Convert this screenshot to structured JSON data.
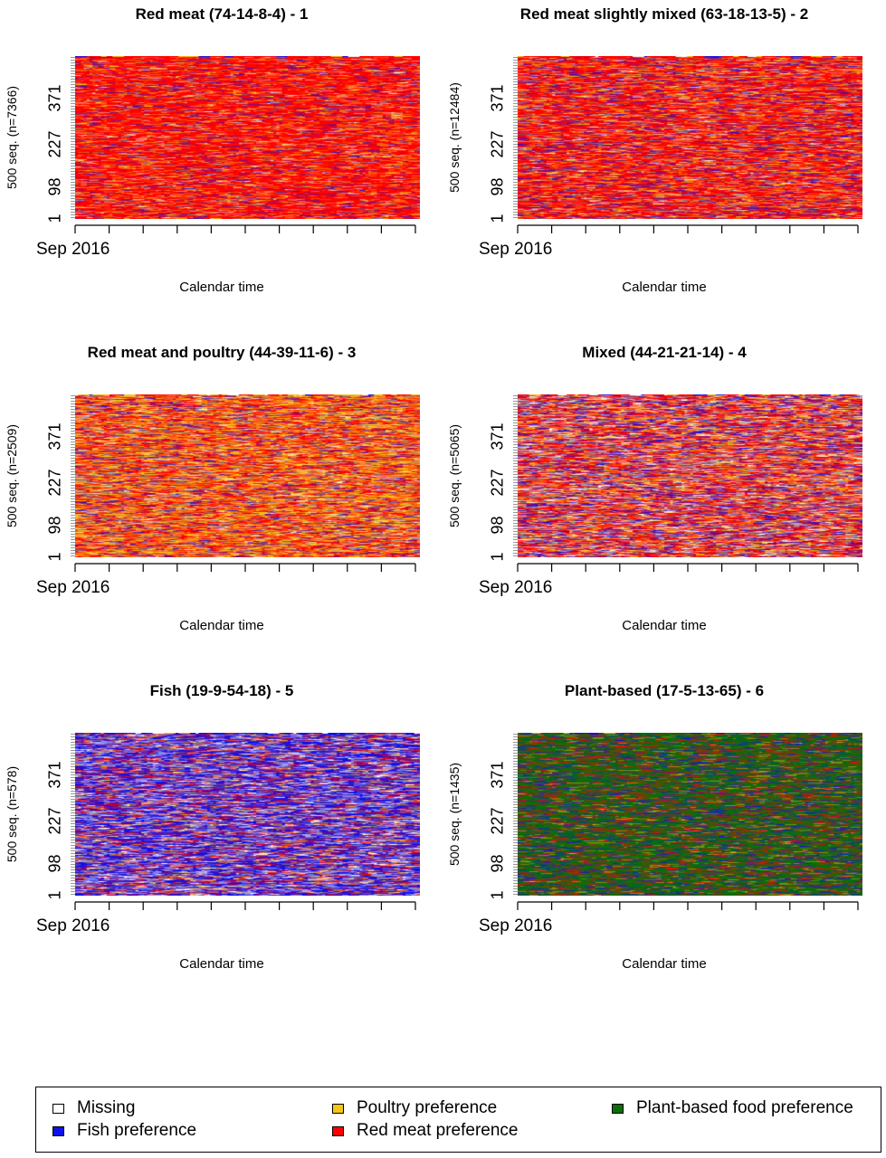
{
  "chart_data": [
    {
      "type": "heatmap",
      "title": "Red meat (74-14-8-4) - 1",
      "ylabel": "500 seq. (n=7366)",
      "xlabel": "Calendar time",
      "x_first_label": "Sep 2016",
      "y_ticks": [
        "1",
        "98",
        "227",
        "371"
      ],
      "composition": {
        "Missing": 4,
        "Poultry preference": 14,
        "Fish preference": 8,
        "Red meat preference": 74
      }
    },
    {
      "type": "heatmap",
      "title": "Red meat slightly mixed (63-18-13-5) - 2",
      "ylabel": "500 seq. (n=12484)",
      "xlabel": "Calendar time",
      "x_first_label": "Sep 2016",
      "y_ticks": [
        "1",
        "98",
        "227",
        "371"
      ],
      "composition": {
        "Missing": 5,
        "Poultry preference": 18,
        "Fish preference": 13,
        "Red meat preference": 63
      }
    },
    {
      "type": "heatmap",
      "title": "Red meat and poultry (44-39-11-6) - 3",
      "ylabel": "500 seq. (n=2509)",
      "xlabel": "Calendar time",
      "x_first_label": "Sep 2016",
      "y_ticks": [
        "1",
        "98",
        "227",
        "371"
      ],
      "composition": {
        "Missing": 6,
        "Poultry preference": 39,
        "Fish preference": 11,
        "Red meat preference": 44
      }
    },
    {
      "type": "heatmap",
      "title": "Mixed (44-21-21-14) - 4",
      "ylabel": "500 seq. (n=5065)",
      "xlabel": "Calendar time",
      "x_first_label": "Sep 2016",
      "y_ticks": [
        "1",
        "98",
        "227",
        "371"
      ],
      "composition": {
        "Missing": 14,
        "Poultry preference": 21,
        "Fish preference": 21,
        "Red meat preference": 44
      }
    },
    {
      "type": "heatmap",
      "title": "Fish (19-9-54-18) - 5",
      "ylabel": "500 seq. (n=578)",
      "xlabel": "Calendar time",
      "x_first_label": "Sep 2016",
      "y_ticks": [
        "1",
        "98",
        "227",
        "371"
      ],
      "composition": {
        "Missing": 18,
        "Poultry preference": 9,
        "Fish preference": 54,
        "Red meat preference": 19
      }
    },
    {
      "type": "heatmap",
      "title": "Plant-based (17-5-13-65) - 6",
      "ylabel": "500 seq. (n=1435)",
      "xlabel": "Calendar time",
      "x_first_label": "Sep 2016",
      "y_ticks": [
        "1",
        "98",
        "227",
        "371"
      ],
      "composition": {
        "Red meat preference": 17,
        "Poultry preference": 5,
        "Fish preference": 13,
        "Plant-based food preference": 65
      }
    }
  ],
  "legend": {
    "items": [
      {
        "label": "Missing",
        "color": "#ffffff"
      },
      {
        "label": "Poultry preference",
        "color": "#f5c518"
      },
      {
        "label": "Plant-based food preference",
        "color": "#0a6e0a"
      },
      {
        "label": "Fish preference",
        "color": "#1010e8"
      },
      {
        "label": "Red meat preference",
        "color": "#ff0000"
      }
    ]
  },
  "colors": {
    "Missing": "#ffffff",
    "Poultry preference": "#f5c518",
    "Fish preference": "#1010e8",
    "Red meat preference": "#ff0000",
    "Plant-based food preference": "#0a6e0a"
  }
}
